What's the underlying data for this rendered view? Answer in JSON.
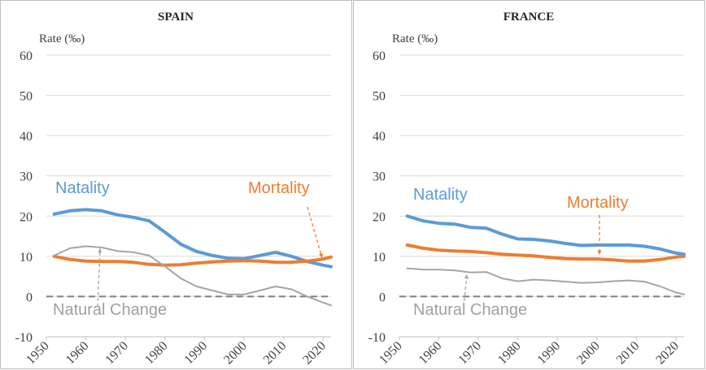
{
  "chart_data": [
    {
      "type": "line",
      "title": "SPAIN",
      "y_label": "Rate (‰)",
      "x": [
        1952,
        1956,
        1960,
        1964,
        1968,
        1972,
        1976,
        1980,
        1984,
        1988,
        1992,
        1996,
        2000,
        2004,
        2008,
        2012,
        2016,
        2020,
        2022
      ],
      "series": [
        {
          "name": "Natality",
          "color": "#5b9bd5",
          "values": [
            20.5,
            21.3,
            21.6,
            21.3,
            20.3,
            19.7,
            18.8,
            16.0,
            13.0,
            11.2,
            10.2,
            9.5,
            9.4,
            10.2,
            11.0,
            10.0,
            8.7,
            7.8,
            7.4
          ]
        },
        {
          "name": "Mortality",
          "color": "#ed7d31",
          "values": [
            10.0,
            9.2,
            8.8,
            8.7,
            8.7,
            8.5,
            8.0,
            7.8,
            7.9,
            8.3,
            8.6,
            8.8,
            8.9,
            8.8,
            8.5,
            8.5,
            8.8,
            9.3,
            9.8
          ]
        },
        {
          "name": "Natural Change",
          "color": "#a5a5a5",
          "values": [
            10.2,
            12.0,
            12.5,
            12.2,
            11.3,
            11.0,
            10.2,
            7.5,
            4.5,
            2.5,
            1.5,
            0.5,
            0.5,
            1.5,
            2.5,
            1.8,
            0.0,
            -1.5,
            -2.2
          ]
        }
      ],
      "xlim": [
        1950,
        2022
      ],
      "xticks": [
        1950,
        1960,
        1970,
        1980,
        1990,
        2000,
        2010,
        2020
      ],
      "ylim": [
        -10,
        60
      ],
      "yticks": [
        -10,
        0,
        10,
        20,
        30,
        40,
        50,
        60
      ],
      "grid": true,
      "reference_line": 0
    },
    {
      "type": "line",
      "title": "FRANCE",
      "y_label": "Rate (‰)",
      "x": [
        1952,
        1956,
        1960,
        1964,
        1968,
        1972,
        1976,
        1980,
        1984,
        1988,
        1992,
        1996,
        2000,
        2004,
        2008,
        2012,
        2016,
        2020,
        2022
      ],
      "series": [
        {
          "name": "Natality",
          "color": "#5b9bd5",
          "values": [
            20.0,
            18.8,
            18.2,
            18.0,
            17.2,
            17.0,
            15.5,
            14.3,
            14.2,
            13.8,
            13.2,
            12.7,
            12.8,
            12.8,
            12.8,
            12.5,
            11.8,
            10.8,
            10.5
          ]
        },
        {
          "name": "Mortality",
          "color": "#ed7d31",
          "values": [
            12.8,
            12.0,
            11.5,
            11.3,
            11.2,
            10.9,
            10.5,
            10.3,
            10.1,
            9.7,
            9.4,
            9.3,
            9.3,
            9.1,
            8.8,
            8.8,
            9.2,
            9.8,
            10.0
          ]
        },
        {
          "name": "Natural Change",
          "color": "#a5a5a5",
          "values": [
            7.0,
            6.7,
            6.7,
            6.5,
            6.0,
            6.1,
            4.5,
            3.8,
            4.2,
            4.0,
            3.7,
            3.4,
            3.5,
            3.8,
            4.0,
            3.7,
            2.5,
            1.0,
            0.5
          ]
        }
      ],
      "xlim": [
        1950,
        2022
      ],
      "xticks": [
        1950,
        1960,
        1970,
        1980,
        1990,
        2000,
        2010,
        2020
      ],
      "ylim": [
        -10,
        60
      ],
      "yticks": [
        -10,
        0,
        10,
        20,
        30,
        40,
        50,
        60
      ],
      "grid": true,
      "reference_line": 0
    }
  ]
}
